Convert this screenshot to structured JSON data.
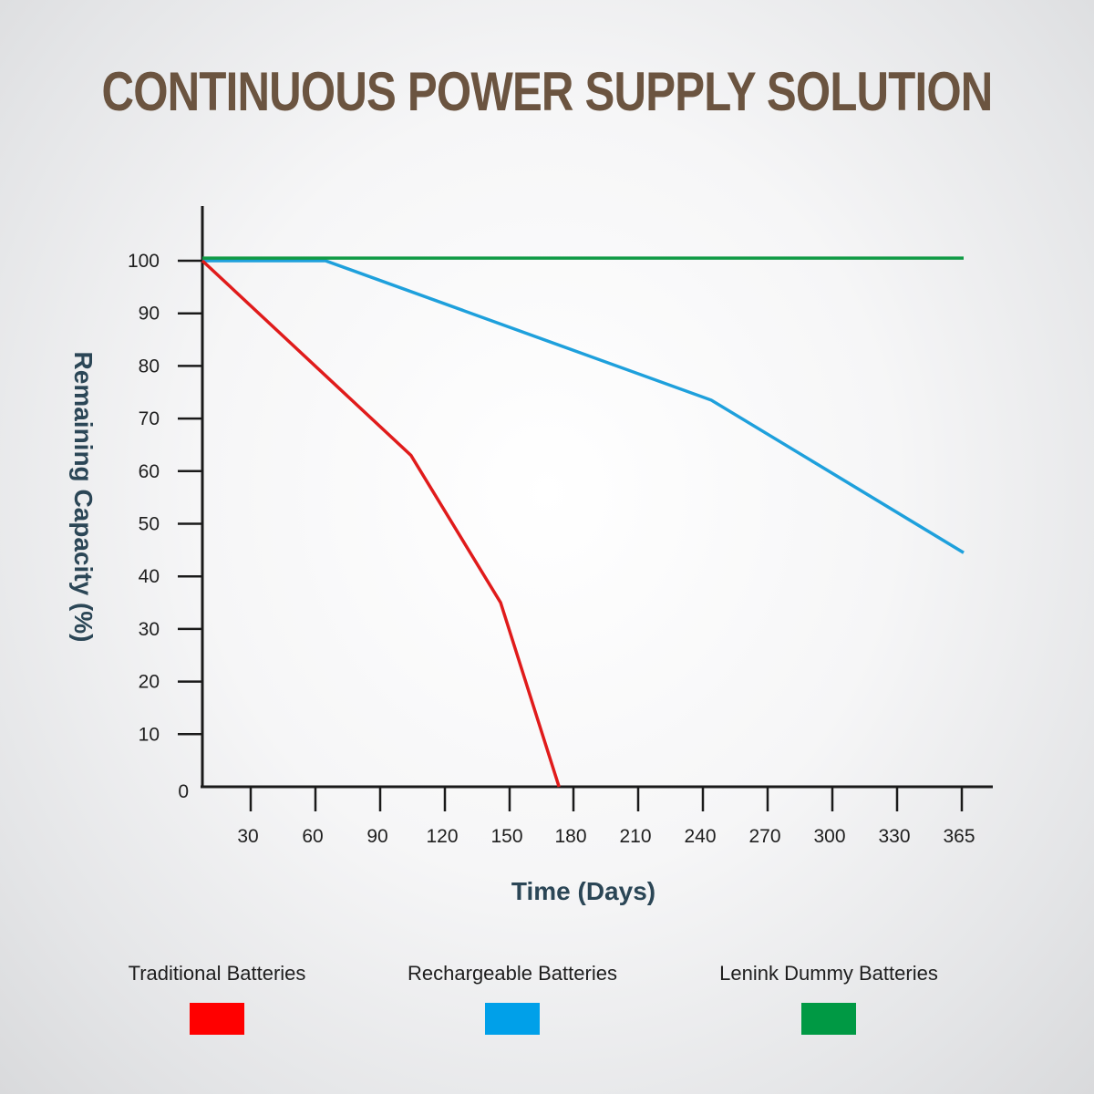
{
  "chart_data": {
    "type": "line",
    "title": "CONTINUOUS POWER SUPPLY SOLUTION",
    "xlabel": "Time (Days)",
    "ylabel": "Remaining Capacity (%)",
    "x_ticks": [
      "30",
      "60",
      "90",
      "120",
      "150",
      "180",
      "210",
      "240",
      "270",
      "300",
      "330",
      "365"
    ],
    "y_ticks": [
      "0",
      "10",
      "20",
      "30",
      "40",
      "50",
      "60",
      "70",
      "80",
      "90",
      "100"
    ],
    "xlim": [
      0,
      365
    ],
    "ylim": [
      0,
      100
    ],
    "grid": false,
    "legend_position": "bottom",
    "series": [
      {
        "name": "Traditional Batteries",
        "color": "#e01b1b",
        "points": [
          [
            0,
            100
          ],
          [
            100,
            63
          ],
          [
            143,
            35
          ],
          [
            171,
            0
          ]
        ]
      },
      {
        "name": "Rechargeable Batteries",
        "color": "#1ea0dc",
        "points": [
          [
            0,
            100
          ],
          [
            59,
            100
          ],
          [
            244,
            73.5
          ],
          [
            365,
            44.5
          ]
        ]
      },
      {
        "name": "Lenink Dummy Batteries",
        "color": "#109a45",
        "points": [
          [
            0,
            100.5
          ],
          [
            365,
            100.5
          ]
        ]
      }
    ],
    "legend_swatch_colors": [
      "#ff0000",
      "#00a0e9",
      "#009944"
    ]
  }
}
